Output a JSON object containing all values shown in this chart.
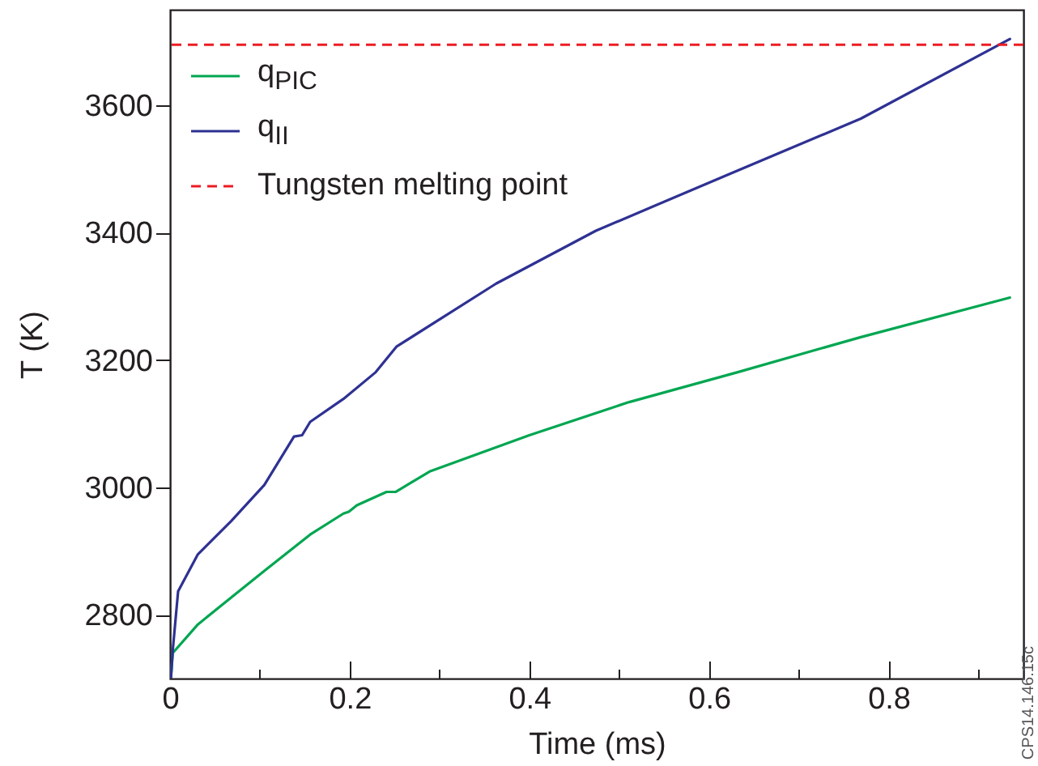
{
  "chart_data": {
    "type": "line",
    "xlabel": "Time (ms)",
    "ylabel": "T (K)",
    "xlim": [
      0,
      0.95
    ],
    "ylim": [
      2700,
      3750
    ],
    "xticks": [
      0,
      {
        "value": 0.1,
        "label": null
      },
      0.2,
      {
        "value": 0.3,
        "label": null
      },
      0.4,
      {
        "value": 0.5,
        "label": null
      },
      0.6,
      {
        "value": 0.7,
        "label": null
      },
      0.8,
      {
        "value": 0.9,
        "label": null
      }
    ],
    "yticks": [
      2800,
      3000,
      3200,
      3400,
      3600
    ],
    "grid": false,
    "legend": "top left",
    "line_style": "solid",
    "marker": "none",
    "series": [
      {
        "name": "q$_{PIC}$",
        "color": "#00a651",
        "x": [
          0.001,
          0.003,
          0.031,
          0.068,
          0.105,
          0.156,
          0.193,
          0.199,
          0.208,
          0.241,
          0.251,
          0.289,
          0.4,
          0.511,
          0.632,
          0.769,
          0.935
        ],
        "values": [
          2702,
          2740,
          2785,
          2827,
          2869,
          2926,
          2959,
          2962,
          2972,
          2993,
          2993,
          3025,
          3082,
          3134,
          3181,
          3236,
          3298
        ]
      },
      {
        "name": "q$_{II}$",
        "color": "#2e3192",
        "x": [
          0.001,
          0.003,
          0.009,
          0.031,
          0.068,
          0.105,
          0.138,
          0.147,
          0.156,
          0.193,
          0.229,
          0.252,
          0.363,
          0.474,
          0.621,
          0.769,
          0.935
        ],
        "values": [
          2700,
          2744,
          2837,
          2895,
          2947,
          3004,
          3080,
          3082,
          3103,
          3139,
          3181,
          3221,
          3320,
          3403,
          3491,
          3579,
          3704
        ]
      }
    ],
    "ref_lines": [
      {
        "axis": "y",
        "value": 3695,
        "label": "Tungsten melting point",
        "color": "#ed1c24",
        "line_style": "dashed"
      }
    ],
    "annotations": [
      "CPS14.146.15c"
    ]
  }
}
